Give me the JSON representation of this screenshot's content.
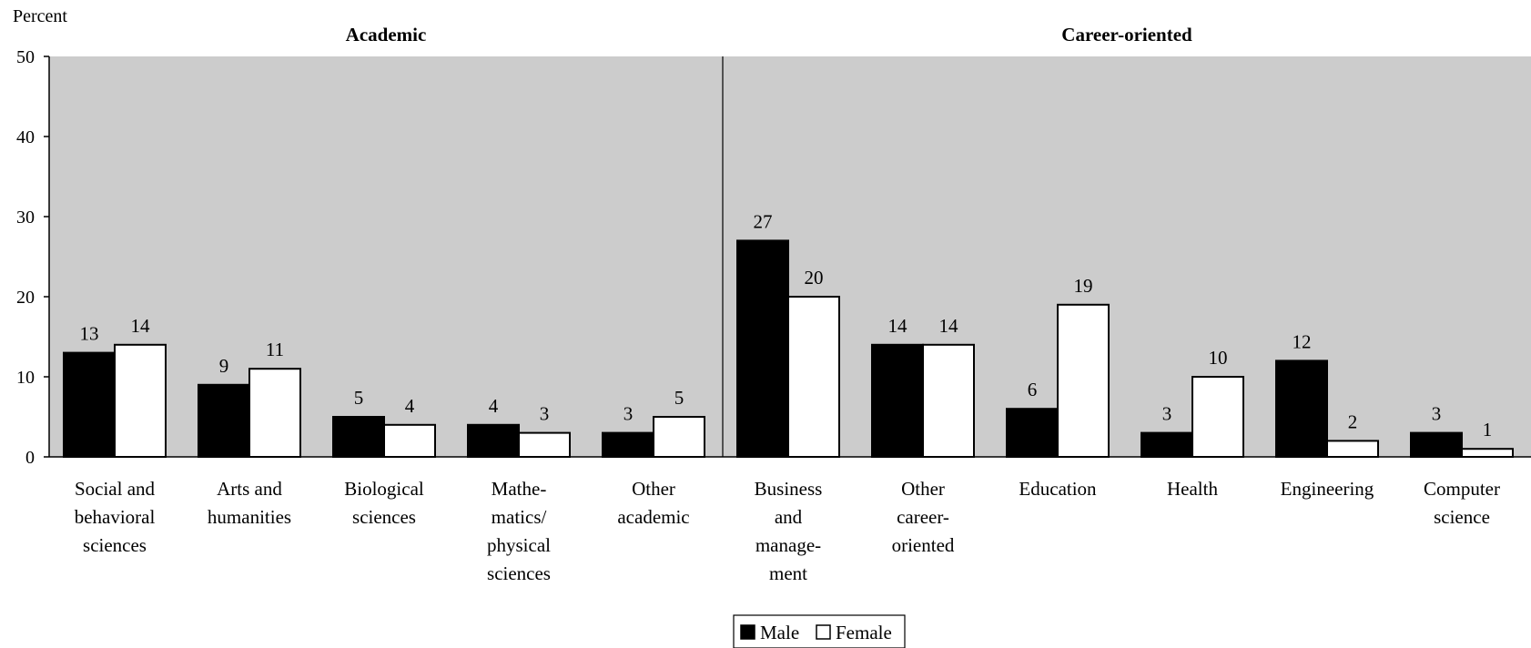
{
  "chart_data": {
    "type": "bar",
    "ylabel": "Percent",
    "ylim": [
      0,
      50
    ],
    "yticks": [
      0,
      10,
      20,
      30,
      40,
      50
    ],
    "groups": [
      {
        "label": "Academic",
        "count": 5
      },
      {
        "label": "Career-oriented",
        "count": 6
      }
    ],
    "categories": [
      [
        "Social and",
        "behavioral",
        "sciences"
      ],
      [
        "Arts and",
        "humanities"
      ],
      [
        "Biological",
        "sciences"
      ],
      [
        "Mathe-",
        "matics/",
        "physical",
        "sciences"
      ],
      [
        "Other",
        "academic"
      ],
      [
        "Business",
        "and",
        "manage-",
        "ment"
      ],
      [
        "Other",
        "career-",
        "oriented"
      ],
      [
        "Education"
      ],
      [
        "Health"
      ],
      [
        "Engineering"
      ],
      [
        "Computer",
        "science"
      ]
    ],
    "series": [
      {
        "name": "Male",
        "color": "#000000",
        "values": [
          13,
          9,
          5,
          4,
          3,
          27,
          14,
          6,
          3,
          12,
          3
        ]
      },
      {
        "name": "Female",
        "color": "#ffffff",
        "values": [
          14,
          11,
          4,
          3,
          5,
          20,
          14,
          19,
          10,
          2,
          1
        ]
      }
    ],
    "plot_background": "#cccccc",
    "grid": false,
    "legend_position": "bottom-center"
  }
}
